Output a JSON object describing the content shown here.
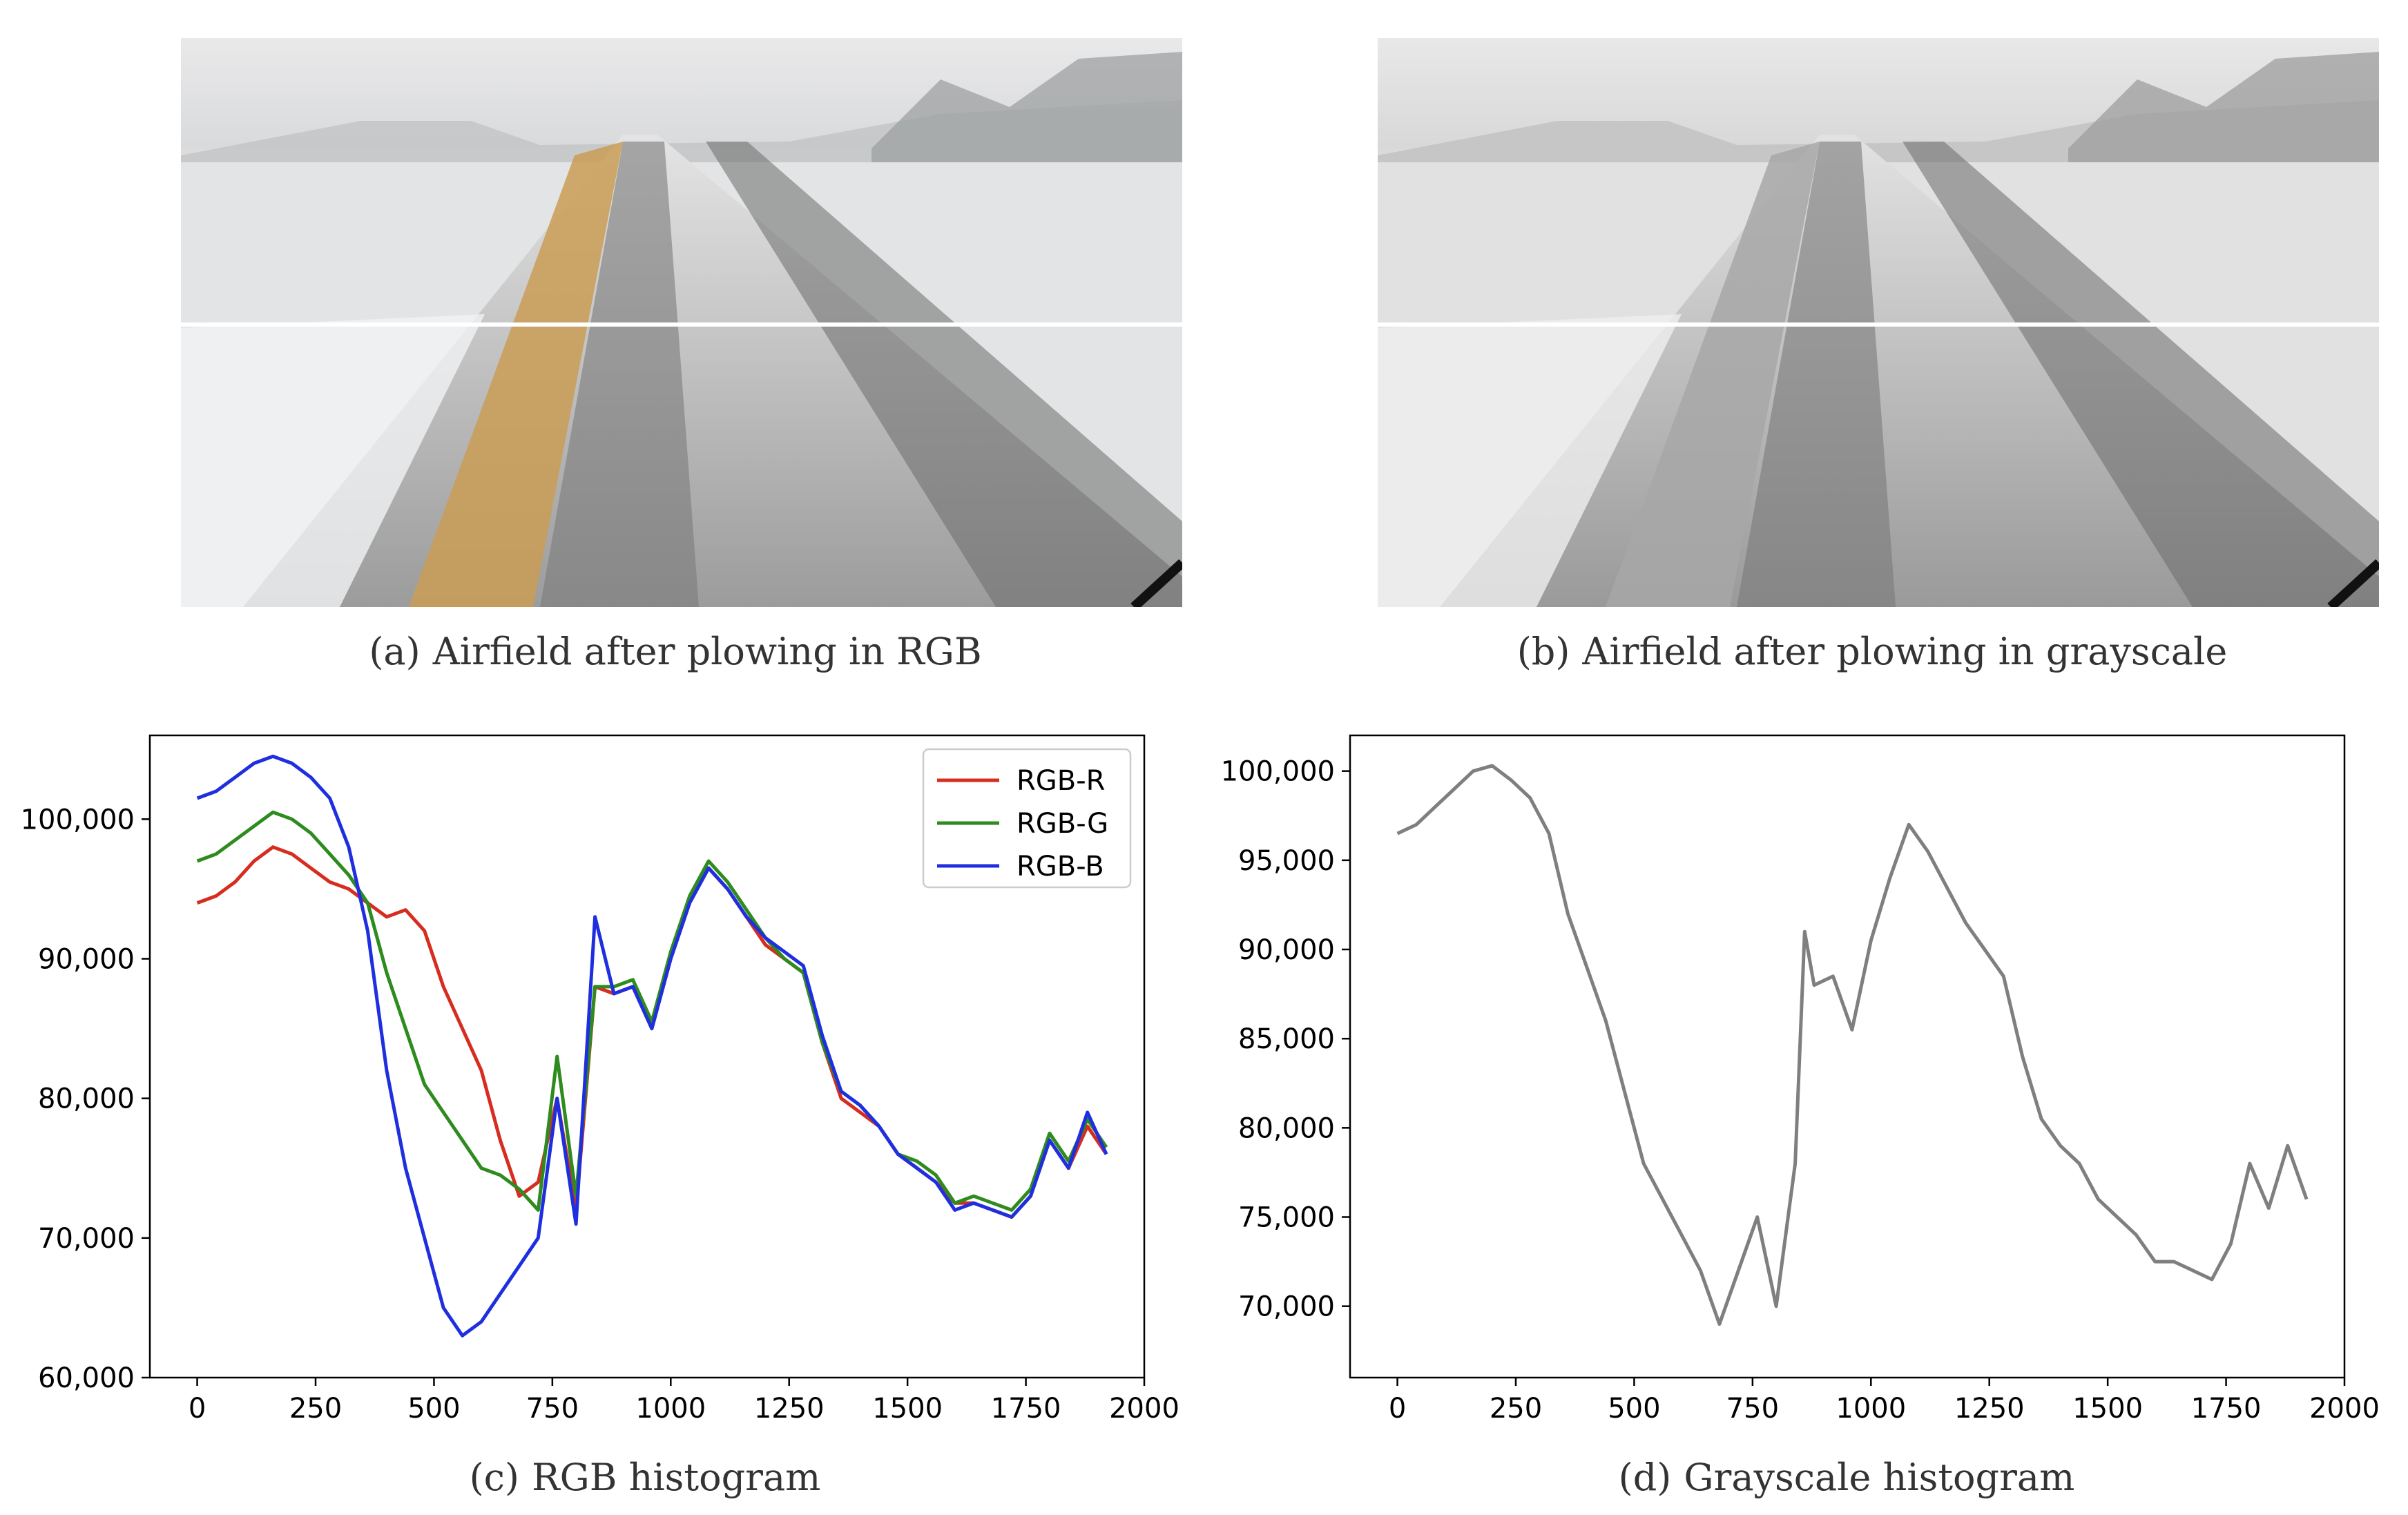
{
  "panels": {
    "a": {
      "label": "(a)",
      "caption": "Airfield after plowing in RGB"
    },
    "b": {
      "label": "(b)",
      "caption": "Airfield after plowing in grayscale"
    },
    "c": {
      "label": "(c)",
      "caption": "RGB histogram"
    },
    "d": {
      "label": "(d)",
      "caption": "Grayscale histogram"
    }
  },
  "colors": {
    "red": "#d62d20",
    "green": "#2e8b1e",
    "blue": "#1f2fe0",
    "gray": "#7f7f7f"
  },
  "chart_data": [
    {
      "type": "line",
      "id": "rgb-histogram",
      "title": "",
      "xlabel": "",
      "ylabel": "",
      "xlim": [
        -100,
        2000
      ],
      "ylim": [
        60000,
        106000
      ],
      "xticks": [
        0,
        250,
        500,
        750,
        1000,
        1250,
        1500,
        1750,
        2000
      ],
      "xtick_labels": [
        "0",
        "250",
        "500",
        "750",
        "1000",
        "1250",
        "1500",
        "1750",
        "2000"
      ],
      "yticks": [
        60000,
        70000,
        80000,
        90000,
        100000
      ],
      "ytick_labels": [
        "60,000",
        "70,000",
        "80,000",
        "90,000",
        "100,000"
      ],
      "legend": "top-right",
      "grid": false,
      "series": [
        {
          "name": "RGB-R",
          "color": "#d62d20",
          "x": [
            0,
            40,
            80,
            120,
            160,
            200,
            240,
            280,
            320,
            360,
            400,
            440,
            480,
            520,
            560,
            600,
            640,
            680,
            720,
            760,
            800,
            840,
            880,
            920,
            960,
            1000,
            1040,
            1080,
            1120,
            1160,
            1200,
            1240,
            1280,
            1320,
            1360,
            1400,
            1440,
            1480,
            1520,
            1560,
            1600,
            1640,
            1680,
            1720,
            1760,
            1800,
            1840,
            1880,
            1920
          ],
          "y": [
            94000,
            94500,
            95500,
            97000,
            98000,
            97500,
            96500,
            95500,
            95000,
            94000,
            93000,
            93500,
            92000,
            88000,
            85000,
            82000,
            77000,
            73000,
            74000,
            80000,
            72000,
            88000,
            87500,
            88000,
            85000,
            90000,
            94000,
            96500,
            95000,
            93000,
            91000,
            90000,
            89000,
            84000,
            80000,
            79000,
            78000,
            76000,
            75000,
            74000,
            72500,
            72500,
            72000,
            71500,
            73000,
            77000,
            75000,
            78000,
            76000
          ]
        },
        {
          "name": "RGB-G",
          "color": "#2e8b1e",
          "x": [
            0,
            40,
            80,
            120,
            160,
            200,
            240,
            280,
            320,
            360,
            400,
            440,
            480,
            520,
            560,
            600,
            640,
            680,
            720,
            760,
            800,
            840,
            880,
            920,
            960,
            1000,
            1040,
            1080,
            1120,
            1160,
            1200,
            1240,
            1280,
            1320,
            1360,
            1400,
            1440,
            1480,
            1520,
            1560,
            1600,
            1640,
            1680,
            1720,
            1760,
            1800,
            1840,
            1880,
            1920
          ],
          "y": [
            97000,
            97500,
            98500,
            99500,
            100500,
            100000,
            99000,
            97500,
            96000,
            94000,
            89000,
            85000,
            81000,
            79000,
            77000,
            75000,
            74500,
            73500,
            72000,
            83000,
            73000,
            88000,
            88000,
            88500,
            85500,
            90500,
            94500,
            97000,
            95500,
            93500,
            91500,
            90000,
            89000,
            84000,
            80500,
            79500,
            78000,
            76000,
            75500,
            74500,
            72500,
            73000,
            72500,
            72000,
            73500,
            77500,
            75500,
            78500,
            76500
          ]
        },
        {
          "name": "RGB-B",
          "color": "#1f2fe0",
          "x": [
            0,
            40,
            80,
            120,
            160,
            200,
            240,
            280,
            320,
            360,
            400,
            440,
            480,
            520,
            560,
            600,
            640,
            680,
            720,
            760,
            800,
            840,
            880,
            920,
            960,
            1000,
            1040,
            1080,
            1120,
            1160,
            1200,
            1240,
            1280,
            1320,
            1360,
            1400,
            1440,
            1480,
            1520,
            1560,
            1600,
            1640,
            1680,
            1720,
            1760,
            1800,
            1840,
            1880,
            1920
          ],
          "y": [
            101500,
            102000,
            103000,
            104000,
            104500,
            104000,
            103000,
            101500,
            98000,
            92000,
            82000,
            75000,
            70000,
            65000,
            63000,
            64000,
            66000,
            68000,
            70000,
            80000,
            71000,
            93000,
            87500,
            88000,
            85000,
            90000,
            94000,
            96500,
            95000,
            93000,
            91500,
            90500,
            89500,
            84500,
            80500,
            79500,
            78000,
            76000,
            75000,
            74000,
            72000,
            72500,
            72000,
            71500,
            73000,
            77000,
            75000,
            79000,
            76000
          ]
        }
      ]
    },
    {
      "type": "line",
      "id": "grayscale-histogram",
      "title": "",
      "xlabel": "",
      "ylabel": "",
      "xlim": [
        -100,
        2000
      ],
      "ylim": [
        66000,
        102000
      ],
      "xticks": [
        0,
        250,
        500,
        750,
        1000,
        1250,
        1500,
        1750,
        2000
      ],
      "xtick_labels": [
        "0",
        "250",
        "500",
        "750",
        "1000",
        "1250",
        "1500",
        "1750",
        "2000"
      ],
      "yticks": [
        70000,
        75000,
        80000,
        85000,
        90000,
        95000,
        100000
      ],
      "ytick_labels": [
        "70,000",
        "75,000",
        "80,000",
        "85,000",
        "90,000",
        "95,000",
        "100,000"
      ],
      "grid": false,
      "series": [
        {
          "name": "",
          "color": "#7f7f7f",
          "x": [
            0,
            40,
            80,
            120,
            160,
            200,
            240,
            280,
            320,
            360,
            400,
            440,
            480,
            520,
            560,
            600,
            640,
            680,
            720,
            760,
            800,
            840,
            860,
            880,
            920,
            960,
            1000,
            1040,
            1080,
            1120,
            1160,
            1200,
            1240,
            1280,
            1320,
            1360,
            1400,
            1440,
            1480,
            1520,
            1560,
            1600,
            1640,
            1680,
            1720,
            1760,
            1800,
            1840,
            1880,
            1920
          ],
          "y": [
            96500,
            97000,
            98000,
            99000,
            100000,
            100300,
            99500,
            98500,
            96500,
            92000,
            89000,
            86000,
            82000,
            78000,
            76000,
            74000,
            72000,
            69000,
            72000,
            75000,
            70000,
            78000,
            91000,
            88000,
            88500,
            85500,
            90500,
            94000,
            97000,
            95500,
            93500,
            91500,
            90000,
            88500,
            84000,
            80500,
            79000,
            78000,
            76000,
            75000,
            74000,
            72500,
            72500,
            72000,
            71500,
            73500,
            78000,
            75500,
            79000,
            76000
          ]
        }
      ]
    }
  ]
}
